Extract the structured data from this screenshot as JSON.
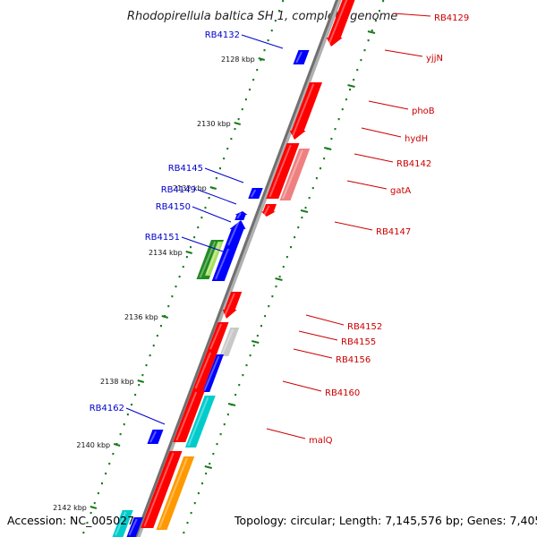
{
  "title": "Rhodopirellula baltica SH 1, complete genome",
  "accession": "Accession: NC_005027",
  "topology": "Topology: circular; Length: 7,145,576 bp; Genes: 7,405",
  "colors": {
    "forward_label": "#cc0000",
    "reverse_label": "#0000cc",
    "backbone": "#888888",
    "tick": "#1a7a1a"
  },
  "kbp_labels": [
    "2128 kbp",
    "2130 kbp",
    "2132 kbp",
    "2134 kbp",
    "2136 kbp",
    "2138 kbp",
    "2140 kbp",
    "2142 kbp"
  ],
  "forward_labels": [
    "RB4129",
    "yjjN",
    "phoB",
    "hydH",
    "RB4142",
    "gatA",
    "RB4147",
    "RB4152",
    "RB4155",
    "RB4156",
    "RB4160",
    "malQ"
  ],
  "reverse_labels": [
    "RB4132",
    "RB4145",
    "RB4149",
    "RB4150",
    "RB4151",
    "RB4162"
  ]
}
